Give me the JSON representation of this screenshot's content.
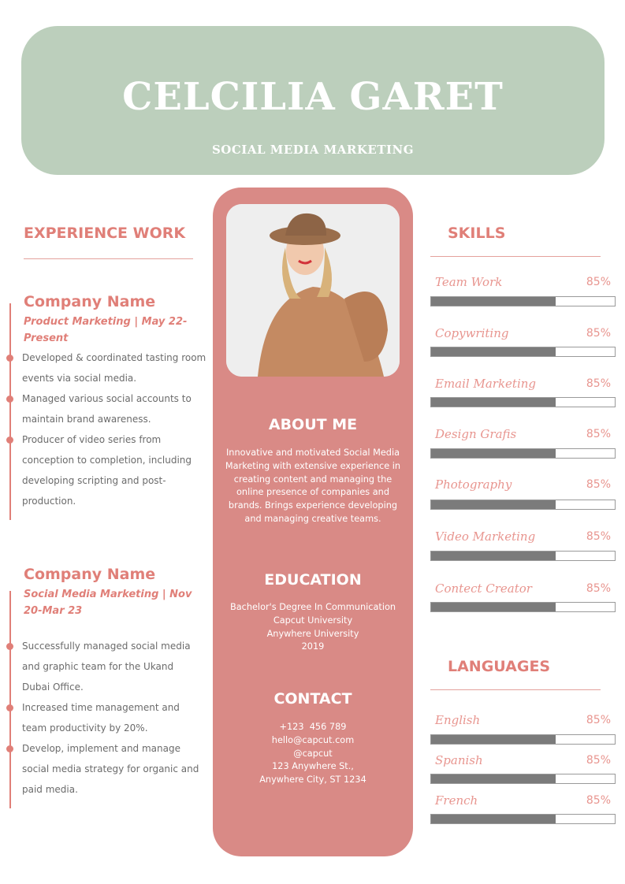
{
  "header": {
    "name": "CELCILIA GARET",
    "role": "SOCIAL MEDIA MARKETING"
  },
  "experience": {
    "heading": "EXPERIENCE WORK",
    "jobs": [
      {
        "company": "Company Name",
        "subtitle": "Product Marketing | May 22-Present",
        "bullets": [
          "Developed & coordinated tasting room events via social media.",
          "Managed various social accounts to maintain brand awareness.",
          "Producer of video series from conception to completion, including developing scripting and post-production."
        ]
      },
      {
        "company": "Company Name",
        "subtitle": "Social Media Marketing | Nov 20-Mar 23",
        "bullets": [
          "Successfully managed social media and graphic team for the Ukand Dubai Office.",
          "Increased time management and team productivity by 20%.",
          "Develop, implement and manage social media strategy for organic and paid media."
        ]
      }
    ]
  },
  "about": {
    "heading": "ABOUT ME",
    "text": "Innovative and motivated Social Media Marketing with extensive experience in creating content and managing the online presence of companies and brands. Brings experience developing and managing creative teams."
  },
  "education": {
    "heading": "EDUCATION",
    "lines": [
      "Bachelor's Degree In Communication",
      "Capcut University",
      "Anywhere University",
      "2019"
    ]
  },
  "contact": {
    "heading": "CONTACT",
    "lines": [
      "+123  456 789",
      "hello@capcut.com",
      "@capcut",
      "123 Anywhere St.,",
      "Anywhere City, ST 1234"
    ]
  },
  "skills": {
    "heading": "SKILLS",
    "items": [
      {
        "label": "Team Work",
        "value": "85%"
      },
      {
        "label": "Copywriting",
        "value": "85%"
      },
      {
        "label": "Email Marketing",
        "value": "85%"
      },
      {
        "label": "Design Grafis",
        "value": "85%"
      },
      {
        "label": "Photography",
        "value": "85%"
      },
      {
        "label": "Video Marketing",
        "value": "85%"
      },
      {
        "label": "Contect Creator",
        "value": "85%"
      }
    ]
  },
  "languages": {
    "heading": "LANGUAGES",
    "items": [
      {
        "label": "English",
        "value": "85%"
      },
      {
        "label": "Spanish",
        "value": "85%"
      },
      {
        "label": "French",
        "value": "85%"
      }
    ]
  },
  "colors": {
    "header": "#bccfbc",
    "accent": "#d98a86",
    "text_accent": "#e07f78",
    "bar": "#7b7b7b"
  }
}
